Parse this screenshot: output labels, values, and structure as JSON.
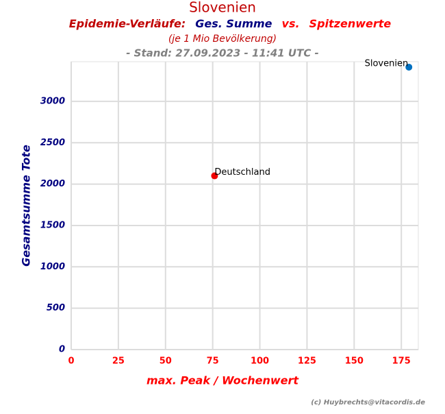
{
  "chart_data": {
    "type": "scatter",
    "title": "Slovenien",
    "subtitle_parts": [
      {
        "text": "Epidemie-Verläufe:",
        "color": "#c00000"
      },
      {
        "text": "Ges. Summe",
        "color": "#000080"
      },
      {
        "text": "vs.",
        "color": "#ff0000"
      },
      {
        "text": "Spitzenwerte",
        "color": "#ff0000"
      }
    ],
    "note": "(je 1 Mio Bevölkerung)",
    "stand": "- Stand: 27.09.2023 - 11:41 UTC -",
    "x_label": "max. Peak / Wochenwert",
    "y_label": "Gesamtsumme Tote",
    "credit": "(c) Huybrechts@vitacordis.de",
    "xlim": [
      0,
      184
    ],
    "ylim": [
      0,
      3480
    ],
    "xticks": [
      0,
      25,
      50,
      75,
      100,
      125,
      150,
      175
    ],
    "yticks": [
      0,
      500,
      1000,
      1500,
      2000,
      2500,
      3000
    ],
    "grid": true,
    "series": [
      {
        "name": "Deutschland",
        "color": "#ee0000",
        "x": [
          76
        ],
        "values": [
          2100
        ]
      },
      {
        "name": "Slovenien",
        "color": "#0070c0",
        "x": [
          179
        ],
        "values": [
          3414
        ]
      }
    ]
  }
}
